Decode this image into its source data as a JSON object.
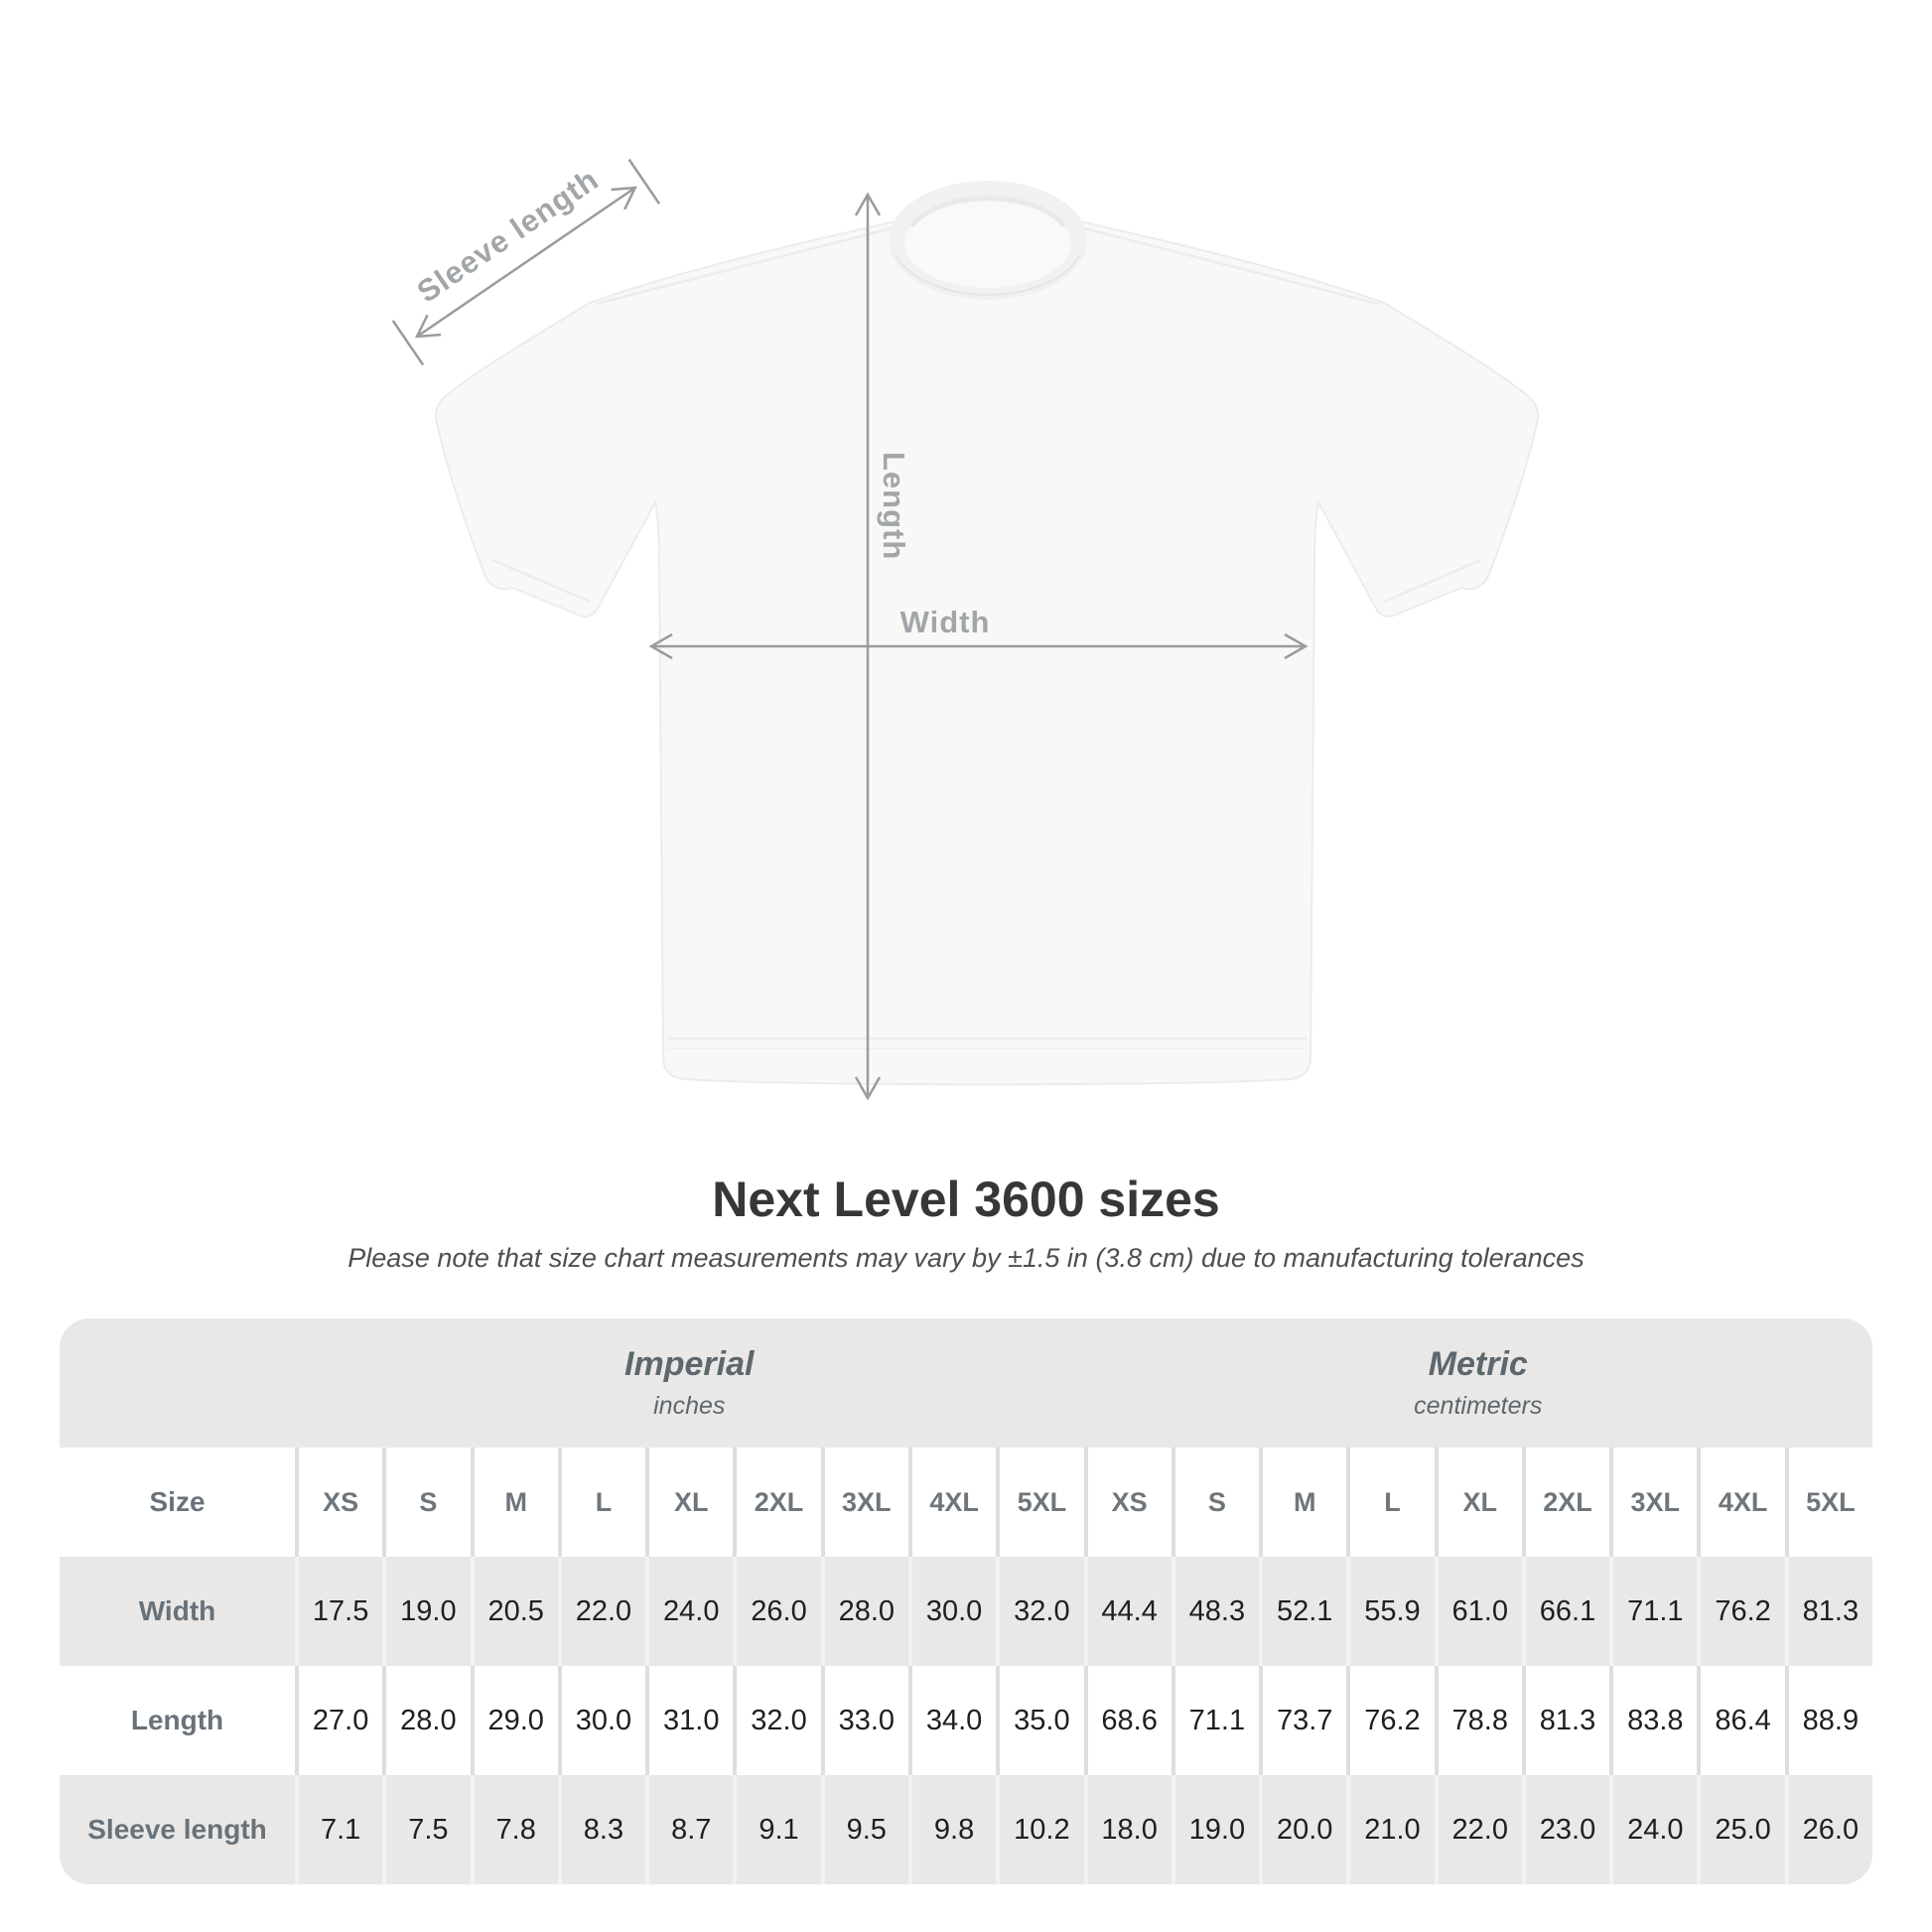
{
  "page": {
    "background": "#ffffff"
  },
  "diagram": {
    "labels": {
      "sleeve_length": "Sleeve length",
      "length": "Length",
      "width": "Width"
    },
    "annotation_line_color": "#9b9b9b",
    "annotation_text_color": "#a2a6a9",
    "shirt_color": "#f8f8f7"
  },
  "title": "Next Level 3600 sizes",
  "subtitle": "Please note that size chart measurements may vary by ±1.5 in (3.8 cm) due to manufacturing tolerances",
  "table": {
    "corner_label": "Size",
    "groups": [
      {
        "name": "Imperial",
        "unit": "inches"
      },
      {
        "name": "Metric",
        "unit": "centimeters"
      }
    ],
    "background": "#e9e8e6",
    "label_color": "#69727a",
    "value_color": "#1f1f1f"
  },
  "chart_data": {
    "type": "table",
    "title": "Next Level 3600 sizes",
    "sizes": [
      "XS",
      "S",
      "M",
      "L",
      "XL",
      "2XL",
      "3XL",
      "4XL",
      "5XL"
    ],
    "units": {
      "imperial": "inches",
      "metric": "centimeters"
    },
    "rows": [
      {
        "label": "Width",
        "imperial_in": [
          17.5,
          19.0,
          20.5,
          22.0,
          24.0,
          26.0,
          28.0,
          30.0,
          32.0
        ],
        "metric_cm": [
          44.4,
          48.3,
          52.1,
          55.9,
          61.0,
          66.1,
          71.1,
          76.2,
          81.3
        ]
      },
      {
        "label": "Length",
        "imperial_in": [
          27.0,
          28.0,
          29.0,
          30.0,
          31.0,
          32.0,
          33.0,
          34.0,
          35.0
        ],
        "metric_cm": [
          68.6,
          71.1,
          73.7,
          76.2,
          78.8,
          81.3,
          83.8,
          86.4,
          88.9
        ]
      },
      {
        "label": "Sleeve length",
        "imperial_in": [
          7.1,
          7.5,
          7.8,
          8.3,
          8.7,
          9.1,
          9.5,
          9.8,
          10.2
        ],
        "metric_cm": [
          18.0,
          19.0,
          20.0,
          21.0,
          22.0,
          23.0,
          24.0,
          25.0,
          26.0
        ]
      }
    ]
  }
}
